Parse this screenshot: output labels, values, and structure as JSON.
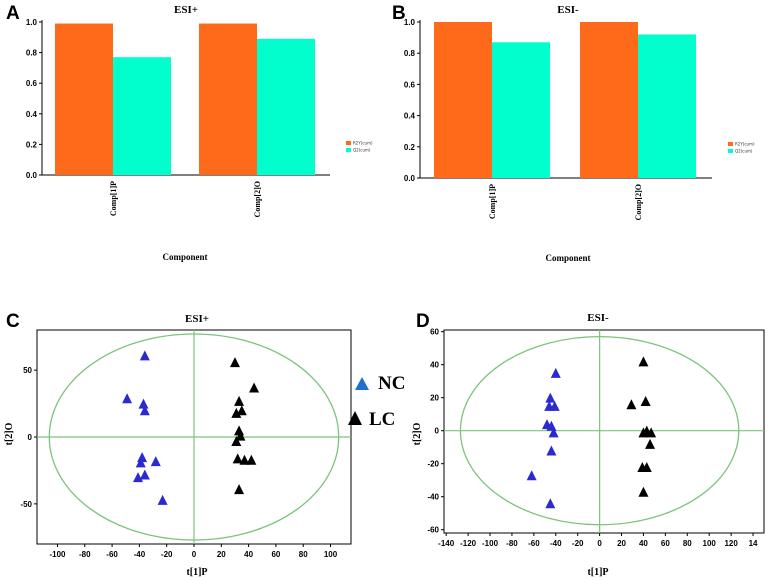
{
  "colors": {
    "r2": "#ff6a1a",
    "q2": "#00ffcc",
    "nc": "#2a2ad0",
    "lc": "#000000",
    "grid_line": "#7bc47b",
    "legend_nc": "#1f6fd1"
  },
  "panels": {
    "A": {
      "letter": "A"
    },
    "B": {
      "letter": "B"
    },
    "C": {
      "letter": "C"
    },
    "D": {
      "letter": "D"
    }
  },
  "chart_data": [
    {
      "panel": "A",
      "type": "bar",
      "title": "ESI+",
      "categories": [
        "Comp[1]P",
        "Comp[2]O"
      ],
      "series": [
        {
          "name": "R2Y(cum)",
          "values": [
            0.99,
            0.99
          ]
        },
        {
          "name": "Q2(cum)",
          "values": [
            0.77,
            0.89
          ]
        }
      ],
      "xlabel": "Component",
      "ylabel": "",
      "ylim": [
        0,
        1.0
      ],
      "yticks": [
        "0.0",
        "0.2",
        "0.4",
        "0.6",
        "0.8",
        "1.0"
      ],
      "legend": [
        "R2Y(cum)",
        "Q2(cum)"
      ]
    },
    {
      "panel": "B",
      "type": "bar",
      "title": "ESI-",
      "categories": [
        "Comp[1]P",
        "Comp[2]O"
      ],
      "series": [
        {
          "name": "R2Y(cum)",
          "values": [
            1.0,
            1.0
          ]
        },
        {
          "name": "Q2(cum)",
          "values": [
            0.87,
            0.92
          ]
        }
      ],
      "xlabel": "Component",
      "ylabel": "",
      "ylim": [
        0,
        1.0
      ],
      "yticks": [
        "0.0",
        "0.2",
        "0.4",
        "0.6",
        "0.8",
        "1.0"
      ],
      "legend": [
        "R2Y(cum)",
        "Q2(cum)"
      ]
    },
    {
      "panel": "C",
      "type": "scatter",
      "title": "ESI+",
      "xlabel": "t[1]P",
      "ylabel": "t[2]O",
      "xlim": [
        -115,
        115
      ],
      "ylim": [
        -80,
        80
      ],
      "xticks": [
        "-100",
        "-80",
        "-60",
        "-40",
        "-20",
        "0",
        "20",
        "40",
        "60",
        "80",
        "100"
      ],
      "yticks": [
        "50",
        "0",
        "-50"
      ],
      "legend": [
        "NC",
        "LC"
      ],
      "ellipse": {
        "rx": 106,
        "ry": 77
      },
      "series": [
        {
          "name": "NC",
          "points": [
            [
              -36,
              61
            ],
            [
              -49,
              29
            ],
            [
              -37,
              25
            ],
            [
              -36,
              20
            ],
            [
              -38,
              -15
            ],
            [
              -39,
              -19
            ],
            [
              -28,
              -18
            ],
            [
              -36,
              -28
            ],
            [
              -41,
              -30
            ],
            [
              -23,
              -47
            ]
          ]
        },
        {
          "name": "LC",
          "points": [
            [
              30,
              56
            ],
            [
              44,
              37
            ],
            [
              33,
              27
            ],
            [
              31,
              18
            ],
            [
              35,
              20
            ],
            [
              33,
              5
            ],
            [
              34,
              1
            ],
            [
              31,
              -3
            ],
            [
              37,
              -17
            ],
            [
              42,
              -17
            ],
            [
              32,
              -16
            ],
            [
              33,
              -39
            ]
          ]
        }
      ]
    },
    {
      "panel": "D",
      "type": "scatter",
      "title": "ESI-",
      "xlabel": "t[1]P",
      "ylabel": "t[2]O",
      "xlim": [
        -142,
        150
      ],
      "ylim": [
        -62,
        61
      ],
      "xticks": [
        "-140",
        "-120",
        "-100",
        "-80",
        "-60",
        "-40",
        "-20",
        "0",
        "20",
        "40",
        "60",
        "80",
        "100",
        "120",
        "14"
      ],
      "yticks": [
        "60",
        "40",
        "20",
        "0",
        "-20",
        "-40",
        "-60"
      ],
      "legend": [],
      "ellipse": {
        "rx": 127,
        "ry": 57
      },
      "series": [
        {
          "name": "NC",
          "points": [
            [
              -40,
              35
            ],
            [
              -45,
              20
            ],
            [
              -46,
              15
            ],
            [
              -41,
              15
            ],
            [
              -48,
              4
            ],
            [
              -44,
              3
            ],
            [
              -42,
              -1
            ],
            [
              -44,
              -12
            ],
            [
              -62,
              -27
            ],
            [
              -45,
              -44
            ]
          ]
        },
        {
          "name": "LC",
          "points": [
            [
              40,
              42
            ],
            [
              42,
              18
            ],
            [
              29,
              16
            ],
            [
              43,
              0
            ],
            [
              40,
              -1
            ],
            [
              47,
              -1
            ],
            [
              46,
              -8
            ],
            [
              39,
              -22
            ],
            [
              43,
              -22
            ],
            [
              40,
              -37
            ]
          ]
        }
      ]
    }
  ]
}
